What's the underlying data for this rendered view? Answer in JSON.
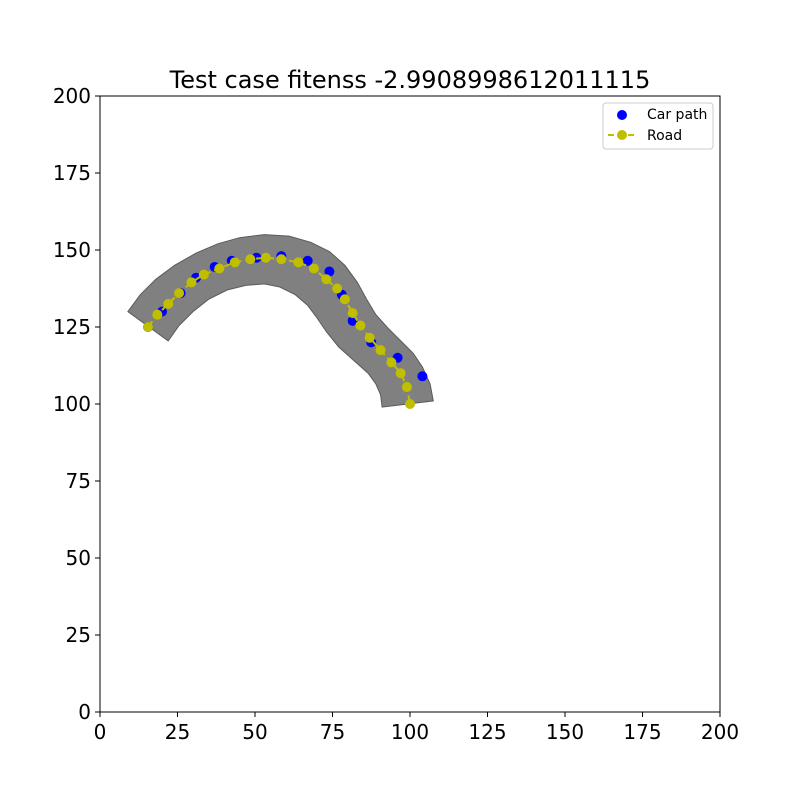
{
  "chart_data": {
    "type": "scatter",
    "title": "Test case fitenss -2.9908998612011115",
    "xlabel": "",
    "ylabel": "",
    "xlim": [
      0,
      200
    ],
    "ylim": [
      0,
      200
    ],
    "xticks": [
      "0",
      "25",
      "50",
      "75",
      "100",
      "125",
      "150",
      "175",
      "200"
    ],
    "yticks": [
      "0",
      "25",
      "50",
      "75",
      "100",
      "125",
      "150",
      "175",
      "200"
    ],
    "grid": false,
    "legend_position": "top-right",
    "road_polygon": [
      [
        9,
        130
      ],
      [
        13,
        135.5
      ],
      [
        18,
        140.5
      ],
      [
        24,
        145
      ],
      [
        31,
        149
      ],
      [
        38,
        152
      ],
      [
        45,
        154
      ],
      [
        53,
        155
      ],
      [
        61,
        154.5
      ],
      [
        68,
        152.5
      ],
      [
        74,
        149.5
      ],
      [
        79,
        145
      ],
      [
        83,
        139.5
      ],
      [
        86,
        134
      ],
      [
        89,
        129
      ],
      [
        93,
        124.5
      ],
      [
        97,
        120.5
      ],
      [
        101,
        116.5
      ],
      [
        104,
        112
      ],
      [
        106.5,
        106.5
      ],
      [
        107.5,
        101
      ],
      [
        91,
        99
      ],
      [
        90.5,
        103
      ],
      [
        89,
        106.5
      ],
      [
        86.5,
        110
      ],
      [
        82,
        114
      ],
      [
        77,
        118.5
      ],
      [
        73,
        123.5
      ],
      [
        70,
        128
      ],
      [
        67,
        132
      ],
      [
        63,
        135.5
      ],
      [
        58,
        138
      ],
      [
        53,
        139
      ],
      [
        47,
        138.5
      ],
      [
        41,
        137
      ],
      [
        35,
        134
      ],
      [
        30,
        130
      ],
      [
        25.5,
        125.5
      ],
      [
        22,
        120.5
      ]
    ],
    "series": [
      {
        "name": "Car path",
        "color": "#0000ff",
        "style": "scatter",
        "x": [
          15.5,
          20,
          26,
          31,
          37,
          42.5,
          50.5,
          58.5,
          67,
          74,
          78,
          81.5,
          87.5,
          96,
          104
        ],
        "y": [
          125,
          130,
          136,
          141,
          144.5,
          146.5,
          147.5,
          148,
          146.5,
          143,
          135.5,
          127,
          120,
          115,
          109
        ]
      },
      {
        "name": "Road",
        "color": "#bfbf00",
        "style": "dashed-line-markers",
        "x": [
          15.5,
          18.5,
          22,
          25.5,
          29.5,
          33.5,
          38.5,
          43.5,
          48.5,
          53.5,
          58.5,
          64,
          69,
          73,
          76.5,
          79,
          81.5,
          84,
          87,
          90.5,
          94,
          97,
          99,
          100
        ],
        "y": [
          125,
          129,
          132.5,
          136,
          139.5,
          142,
          144,
          146,
          147,
          147.5,
          147,
          146,
          144,
          140.5,
          137.5,
          134,
          129.5,
          125.5,
          121.5,
          117.5,
          113.5,
          110,
          105.5,
          100
        ]
      }
    ]
  }
}
